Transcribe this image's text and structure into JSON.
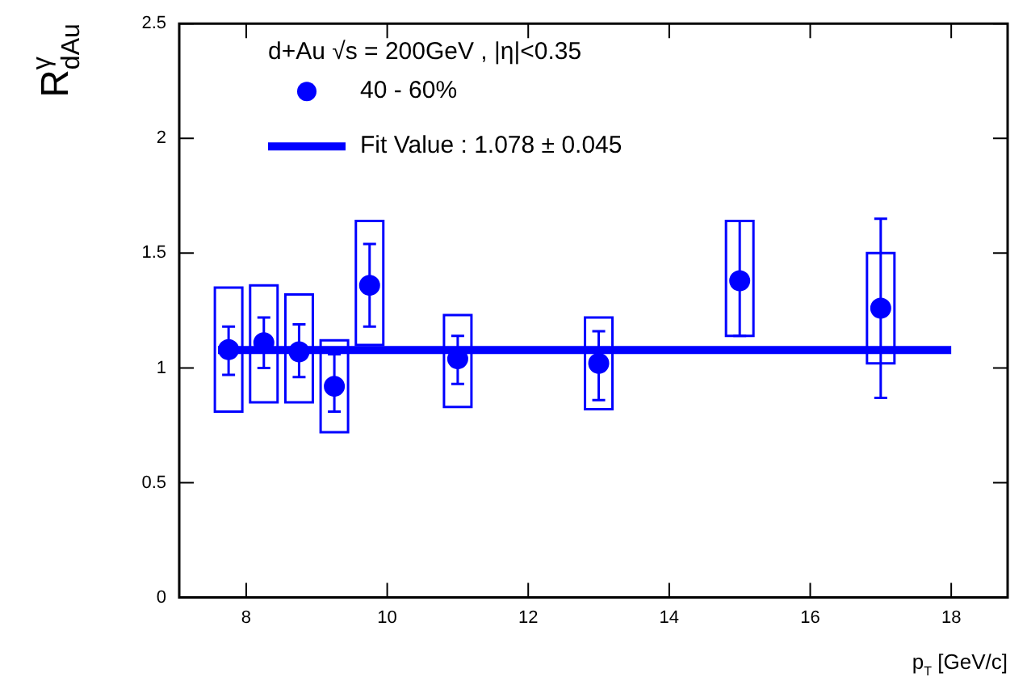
{
  "chart_data": {
    "type": "scatter",
    "xlabel": "p$_{T}$ [GeV/c]",
    "ylabel": "R$^{γ}$$_{dAu}$",
    "legend_title": "d+Au √s = 200GeV , |η|<0.35",
    "xlim": [
      7.05,
      18.8
    ],
    "xticks": [
      8,
      10,
      12,
      14,
      16,
      18
    ],
    "ylim": [
      0,
      2.5
    ],
    "yticks": [
      0,
      0.5,
      1,
      1.5,
      2,
      2.5
    ],
    "grid": false,
    "legend": "top left",
    "marker": "circle",
    "series": [
      {
        "type": "bar",
        "color": "#0000ff",
        "x": [
          7.75,
          8.25,
          8.75,
          9.25,
          9.75,
          11,
          13,
          15,
          17
        ],
        "base": [
          0.81,
          0.85,
          0.85,
          0.72,
          1.1,
          0.83,
          0.82,
          1.14,
          1.02
        ],
        "values": [
          0.54,
          0.51,
          0.47,
          0.4,
          0.54,
          0.4,
          0.4,
          0.5,
          0.48
        ]
      },
      {
        "type": "line",
        "marker": "none",
        "name": "Fit Value : 1.078 ± 0.045",
        "color": "#0000ff",
        "x": [
          7.6,
          18
        ],
        "values": [
          1.078,
          1.078
        ]
      },
      {
        "name": "40 - 60%",
        "color": "#0000ff",
        "x": [
          7.75,
          8.25,
          8.75,
          9.25,
          9.75,
          11,
          13,
          15,
          17
        ],
        "values": [
          1.08,
          1.11,
          1.07,
          0.92,
          1.36,
          1.04,
          1.02,
          1.38,
          1.26
        ],
        "errors": [
          [
            0.97,
            1.18
          ],
          [
            1.0,
            1.22
          ],
          [
            0.96,
            1.19
          ],
          [
            0.81,
            1.06
          ],
          [
            1.18,
            1.54
          ],
          [
            0.93,
            1.14
          ],
          [
            0.86,
            1.16
          ],
          [
            1.14,
            1.64
          ],
          [
            0.87,
            1.65
          ]
        ]
      }
    ]
  }
}
